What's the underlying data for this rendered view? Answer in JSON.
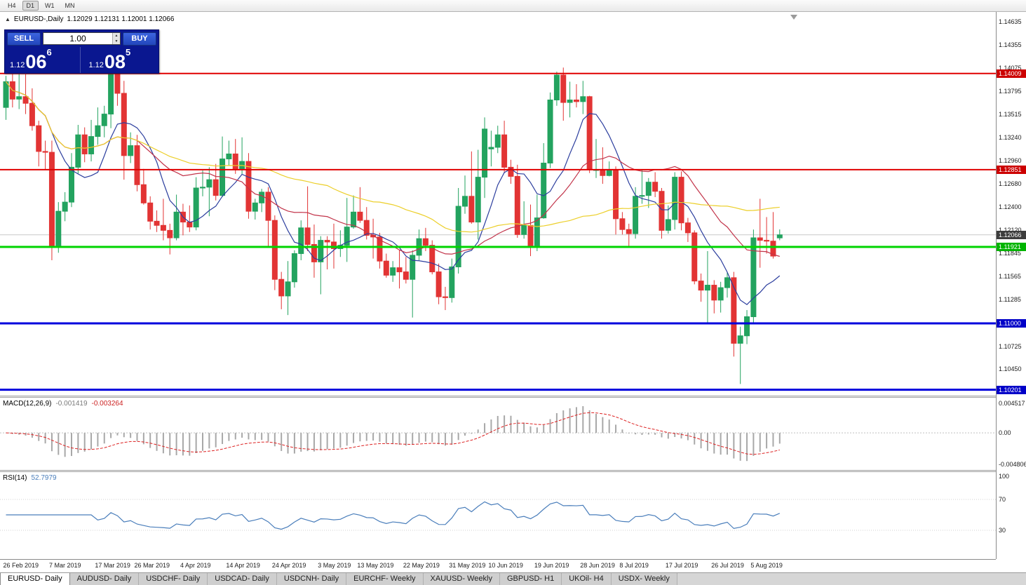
{
  "toolbar": {
    "timeframes": [
      {
        "label": "H4",
        "active": false
      },
      {
        "label": "D1",
        "active": true
      },
      {
        "label": "W1",
        "active": false
      },
      {
        "label": "MN",
        "active": false
      }
    ]
  },
  "chart": {
    "title": "EURUSD-,Daily",
    "ohlc_text": "1.12029 1.12131 1.12001 1.12066"
  },
  "trade_panel": {
    "sell_label": "SELL",
    "buy_label": "BUY",
    "volume": "1.00",
    "sell_price": {
      "prefix": "1.12",
      "big": "06",
      "sup": "6"
    },
    "buy_price": {
      "prefix": "1.12",
      "big": "08",
      "sup": "5"
    }
  },
  "chart_data": {
    "type": "candlestick",
    "symbol": "EURUSD",
    "timeframe": "Daily",
    "price_range": {
      "top": 1.1475,
      "bottom": 1.1013
    },
    "candle_up_color": "#23a35f",
    "candle_down_color": "#e23434",
    "ohlc": [
      [
        1.136,
        1.1398,
        1.1345,
        1.1391
      ],
      [
        1.1391,
        1.1404,
        1.136,
        1.137
      ],
      [
        1.137,
        1.1402,
        1.1358,
        1.1373
      ],
      [
        1.1373,
        1.14,
        1.1352,
        1.1365
      ],
      [
        1.1365,
        1.1383,
        1.1332,
        1.1338
      ],
      [
        1.1338,
        1.1344,
        1.1289,
        1.1307
      ],
      [
        1.1307,
        1.132,
        1.1285,
        1.1306
      ],
      [
        1.1306,
        1.132,
        1.1176,
        1.1192
      ],
      [
        1.1192,
        1.1246,
        1.1185,
        1.1235
      ],
      [
        1.1235,
        1.1258,
        1.1223,
        1.1246
      ],
      [
        1.1246,
        1.1305,
        1.124,
        1.1288
      ],
      [
        1.1288,
        1.1339,
        1.128,
        1.1327
      ],
      [
        1.1327,
        1.1336,
        1.1294,
        1.1304
      ],
      [
        1.1304,
        1.1345,
        1.1295,
        1.1325
      ],
      [
        1.1325,
        1.136,
        1.1315,
        1.1338
      ],
      [
        1.1338,
        1.1362,
        1.1324,
        1.1352
      ],
      [
        1.1352,
        1.1415,
        1.1335,
        1.1408
      ],
      [
        1.1408,
        1.1414,
        1.1362,
        1.1377
      ],
      [
        1.1377,
        1.1392,
        1.1273,
        1.1302
      ],
      [
        1.1302,
        1.133,
        1.1293,
        1.1314
      ],
      [
        1.1314,
        1.1327,
        1.1259,
        1.1267
      ],
      [
        1.1267,
        1.1286,
        1.1243,
        1.1245
      ],
      [
        1.1245,
        1.1253,
        1.1213,
        1.1223
      ],
      [
        1.1223,
        1.1236,
        1.121,
        1.1218
      ],
      [
        1.1218,
        1.125,
        1.12,
        1.1212
      ],
      [
        1.1212,
        1.122,
        1.1183,
        1.1203
      ],
      [
        1.1203,
        1.1255,
        1.12,
        1.1234
      ],
      [
        1.1234,
        1.1244,
        1.1206,
        1.1222
      ],
      [
        1.1222,
        1.1242,
        1.121,
        1.1216
      ],
      [
        1.1216,
        1.1276,
        1.1212,
        1.1263
      ],
      [
        1.1263,
        1.1284,
        1.1253,
        1.1264
      ],
      [
        1.1264,
        1.1288,
        1.1229,
        1.1273
      ],
      [
        1.1273,
        1.1292,
        1.1248,
        1.1254
      ],
      [
        1.1254,
        1.1325,
        1.1252,
        1.1298
      ],
      [
        1.1298,
        1.132,
        1.129,
        1.1304
      ],
      [
        1.1304,
        1.1322,
        1.128,
        1.1285
      ],
      [
        1.1285,
        1.1324,
        1.128,
        1.1295
      ],
      [
        1.1295,
        1.1305,
        1.1226,
        1.1235
      ],
      [
        1.1235,
        1.125,
        1.1225,
        1.1245
      ],
      [
        1.1245,
        1.1262,
        1.1234,
        1.1258
      ],
      [
        1.1258,
        1.1264,
        1.1192,
        1.1224
      ],
      [
        1.1224,
        1.123,
        1.114,
        1.1153
      ],
      [
        1.1153,
        1.1162,
        1.1117,
        1.1133
      ],
      [
        1.1133,
        1.1175,
        1.111,
        1.115
      ],
      [
        1.115,
        1.1188,
        1.1143,
        1.1184
      ],
      [
        1.1184,
        1.1224,
        1.1176,
        1.1215
      ],
      [
        1.1215,
        1.1265,
        1.1187,
        1.1195
      ],
      [
        1.1195,
        1.1219,
        1.1155,
        1.1174
      ],
      [
        1.1174,
        1.1205,
        1.1135,
        1.12
      ],
      [
        1.12,
        1.1205,
        1.1165,
        1.1198
      ],
      [
        1.1198,
        1.122,
        1.1166,
        1.119
      ],
      [
        1.119,
        1.1212,
        1.118,
        1.1194
      ],
      [
        1.1194,
        1.1251,
        1.1174,
        1.1216
      ],
      [
        1.1216,
        1.1254,
        1.1214,
        1.1234
      ],
      [
        1.1234,
        1.1264,
        1.1221,
        1.1224
      ],
      [
        1.1224,
        1.124,
        1.1201,
        1.1206
      ],
      [
        1.1206,
        1.1226,
        1.1178,
        1.1204
      ],
      [
        1.1204,
        1.1209,
        1.1166,
        1.1175
      ],
      [
        1.1175,
        1.1184,
        1.1155,
        1.1158
      ],
      [
        1.1158,
        1.1175,
        1.115,
        1.1167
      ],
      [
        1.1167,
        1.1188,
        1.1142,
        1.1162
      ],
      [
        1.1162,
        1.118,
        1.1148,
        1.1153
      ],
      [
        1.1153,
        1.1188,
        1.1107,
        1.1182
      ],
      [
        1.1182,
        1.1213,
        1.1176,
        1.1202
      ],
      [
        1.1202,
        1.1215,
        1.1187,
        1.1194
      ],
      [
        1.1194,
        1.12,
        1.1159,
        1.1162
      ],
      [
        1.1162,
        1.1172,
        1.1123,
        1.1132
      ],
      [
        1.1132,
        1.1144,
        1.1116,
        1.1131
      ],
      [
        1.1131,
        1.1178,
        1.1125,
        1.1168
      ],
      [
        1.1168,
        1.1263,
        1.116,
        1.1241
      ],
      [
        1.1241,
        1.1278,
        1.1232,
        1.1253
      ],
      [
        1.1253,
        1.1307,
        1.122,
        1.1222
      ],
      [
        1.1222,
        1.1309,
        1.1201,
        1.1276
      ],
      [
        1.1276,
        1.1348,
        1.1251,
        1.1334
      ],
      [
        1.131,
        1.1332,
        1.1289,
        1.1312
      ],
      [
        1.1312,
        1.1338,
        1.1305,
        1.1327
      ],
      [
        1.1327,
        1.1344,
        1.1281,
        1.1288
      ],
      [
        1.1288,
        1.1297,
        1.1268,
        1.1277
      ],
      [
        1.1277,
        1.1291,
        1.1203,
        1.1207
      ],
      [
        1.1207,
        1.1247,
        1.1202,
        1.1218
      ],
      [
        1.1218,
        1.1243,
        1.1181,
        1.1193
      ],
      [
        1.1193,
        1.1255,
        1.1187,
        1.1227
      ],
      [
        1.1227,
        1.1317,
        1.1226,
        1.1293
      ],
      [
        1.1293,
        1.1378,
        1.1287,
        1.1369
      ],
      [
        1.1369,
        1.1403,
        1.1362,
        1.1399
      ],
      [
        1.1399,
        1.1408,
        1.1344,
        1.1366
      ],
      [
        1.1366,
        1.1391,
        1.1348,
        1.1369
      ],
      [
        1.1369,
        1.1388,
        1.136,
        1.1367
      ],
      [
        1.1367,
        1.1392,
        1.1352,
        1.1373
      ],
      [
        1.1373,
        1.1374,
        1.1281,
        1.1285
      ],
      [
        1.1285,
        1.1322,
        1.1275,
        1.1285
      ],
      [
        1.1285,
        1.1312,
        1.1268,
        1.1278
      ],
      [
        1.1278,
        1.1295,
        1.1277,
        1.1285
      ],
      [
        1.1285,
        1.1289,
        1.1207,
        1.1226
      ],
      [
        1.1226,
        1.1234,
        1.1207,
        1.1213
      ],
      [
        1.1213,
        1.122,
        1.1193,
        1.1208
      ],
      [
        1.1208,
        1.1264,
        1.1202,
        1.1253
      ],
      [
        1.1253,
        1.1285,
        1.1244,
        1.1254
      ],
      [
        1.1254,
        1.1275,
        1.1239,
        1.127
      ],
      [
        1.127,
        1.1282,
        1.1252,
        1.1259
      ],
      [
        1.1259,
        1.1263,
        1.1202,
        1.1212
      ],
      [
        1.1212,
        1.1242,
        1.1208,
        1.1225
      ],
      [
        1.1225,
        1.1282,
        1.1213,
        1.1276
      ],
      [
        1.1276,
        1.1283,
        1.1212,
        1.1221
      ],
      [
        1.1221,
        1.1227,
        1.1198,
        1.1209
      ],
      [
        1.1209,
        1.1212,
        1.1147,
        1.1151
      ],
      [
        1.1151,
        1.116,
        1.1126,
        1.114
      ],
      [
        1.114,
        1.1187,
        1.1101,
        1.1146
      ],
      [
        1.1146,
        1.1152,
        1.1112,
        1.1128
      ],
      [
        1.1128,
        1.115,
        1.1113,
        1.1143
      ],
      [
        1.1143,
        1.1162,
        1.1131,
        1.1155
      ],
      [
        1.1155,
        1.1162,
        1.106,
        1.1076
      ],
      [
        1.1076,
        1.1096,
        1.1027,
        1.1085
      ],
      [
        1.1085,
        1.1116,
        1.1075,
        1.1108
      ],
      [
        1.1108,
        1.1213,
        1.1101,
        1.1203
      ],
      [
        1.1203,
        1.125,
        1.1167,
        1.12
      ],
      [
        1.12,
        1.1228,
        1.1184,
        1.1199
      ],
      [
        1.1199,
        1.1234,
        1.1178,
        1.1181
      ],
      [
        1.12029,
        1.12131,
        1.12001,
        1.12066
      ]
    ],
    "moving_averages": [
      {
        "period": 8,
        "color": "#2c3e9e"
      },
      {
        "period": 21,
        "color": "#c2344a"
      },
      {
        "period": 50,
        "color": "#eccf2a"
      }
    ],
    "hlines": [
      {
        "price": 1.14009,
        "label": "1.14009",
        "color": "#e00000",
        "width": 2,
        "label_bg": "#cc0000"
      },
      {
        "price": 1.12851,
        "label": "1.12851",
        "color": "#e00000",
        "width": 2,
        "label_bg": "#cc0000"
      },
      {
        "price": 1.11921,
        "label": "1.11921",
        "color": "#00d400",
        "width": 3,
        "label_bg": "#00b400"
      },
      {
        "price": 1.11,
        "label": "1.11000",
        "color": "#0000dd",
        "width": 3,
        "label_bg": "#0000c8"
      },
      {
        "price": 1.10201,
        "label": "1.10201",
        "color": "#0000dd",
        "width": 3,
        "label_bg": "#0000c8"
      }
    ],
    "current_price": {
      "price": 1.12066,
      "label": "1.12066",
      "label_bg": "#3c3c3c",
      "line_color": "#c8c8c8"
    },
    "price_axis_ticks": [
      "1.14635",
      "1.14355",
      "1.14075",
      "1.13795",
      "1.13515",
      "1.13240",
      "1.12960",
      "1.12680",
      "1.12400",
      "1.12120",
      "1.11845",
      "1.11565",
      "1.11285",
      "1.10725",
      "1.10450"
    ],
    "date_labels": [
      {
        "index": 0,
        "label": "26 Feb 2019"
      },
      {
        "index": 7,
        "label": "7 Mar 2019"
      },
      {
        "index": 14,
        "label": "17 Mar 2019"
      },
      {
        "index": 20,
        "label": "26 Mar 2019"
      },
      {
        "index": 27,
        "label": "4 Apr 2019"
      },
      {
        "index": 34,
        "label": "14 Apr 2019"
      },
      {
        "index": 41,
        "label": "24 Apr 2019"
      },
      {
        "index": 48,
        "label": "3 May 2019"
      },
      {
        "index": 54,
        "label": "13 May 2019"
      },
      {
        "index": 61,
        "label": "22 May 2019"
      },
      {
        "index": 68,
        "label": "31 May 2019"
      },
      {
        "index": 74,
        "label": "10 Jun 2019"
      },
      {
        "index": 81,
        "label": "19 Jun 2019"
      },
      {
        "index": 88,
        "label": "28 Jun 2019"
      },
      {
        "index": 94,
        "label": "8 Jul 2019"
      },
      {
        "index": 101,
        "label": "17 Jul 2019"
      },
      {
        "index": 108,
        "label": "26 Jul 2019"
      },
      {
        "index": 114,
        "label": "5 Aug 2019"
      }
    ],
    "macd": {
      "label": "MACD(12,26,9)",
      "value_main": "-0.001419",
      "value_signal": "-0.003264",
      "fast": 12,
      "slow": 26,
      "signal": 9,
      "axis_max": 0.004517,
      "axis_min": -0.004806,
      "axis_labels": [
        "0.004517",
        "0.00",
        "-0.004806"
      ],
      "histogram_color": "#a8a8a8",
      "signal_color": "#dd2222"
    },
    "rsi": {
      "label": "RSI(14)",
      "value": "52.7979",
      "period": 14,
      "levels": [
        100,
        70,
        30
      ],
      "line_color": "#4a7ebb"
    }
  },
  "tabs": [
    {
      "label": "EURUSD- Daily",
      "active": true
    },
    {
      "label": "AUDUSD- Daily",
      "active": false
    },
    {
      "label": "USDCHF- Daily",
      "active": false
    },
    {
      "label": "USDCAD- Daily",
      "active": false
    },
    {
      "label": "USDCNH- Daily",
      "active": false
    },
    {
      "label": "EURCHF- Weekly",
      "active": false
    },
    {
      "label": "XAUUSD- Weekly",
      "active": false
    },
    {
      "label": "GBPUSD- H1",
      "active": false
    },
    {
      "label": "UKOil- H4",
      "active": false
    },
    {
      "label": "USDX- Weekly",
      "active": false
    }
  ]
}
